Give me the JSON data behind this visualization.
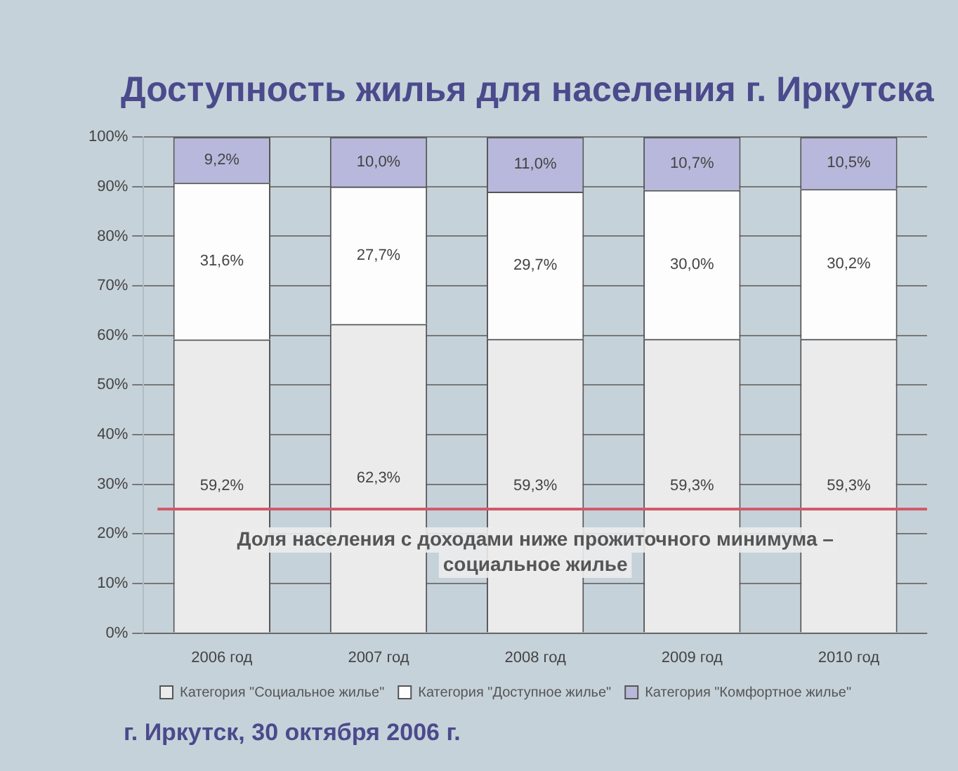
{
  "chart_data": {
    "type": "bar",
    "stacked": true,
    "title": "Доступность жилья для населения г. Иркутска",
    "categories": [
      "2006 год",
      "2007 год",
      "2008 год",
      "2009 год",
      "2010 год"
    ],
    "series": [
      {
        "name": "Категория \"Социальное жилье\"",
        "color": "#ebebeb",
        "values": [
          59.2,
          62.3,
          59.3,
          59.3,
          59.3
        ],
        "value_labels": [
          "59,2%",
          "62,3%",
          "59,3%",
          "59,3%",
          "59,3%"
        ]
      },
      {
        "name": "Категория \"Доступное жилье\"",
        "color": "#fdfdfd",
        "values": [
          31.6,
          27.7,
          29.7,
          30.0,
          30.2
        ],
        "value_labels": [
          "31,6%",
          "27,7%",
          "29,7%",
          "30,0%",
          "30,2%"
        ]
      },
      {
        "name": "Категория \"Комфортное жилье\"",
        "color": "#b8b8dc",
        "values": [
          9.2,
          10.0,
          11.0,
          10.7,
          10.5
        ],
        "value_labels": [
          "9,2%",
          "10,0%",
          "11,0%",
          "10,7%",
          "10,5%"
        ]
      }
    ],
    "ylim": [
      0,
      100
    ],
    "yticks": [
      {
        "value": 0,
        "label": "0%"
      },
      {
        "value": 10,
        "label": "10%"
      },
      {
        "value": 20,
        "label": "20%"
      },
      {
        "value": 30,
        "label": "30%"
      },
      {
        "value": 40,
        "label": "40%"
      },
      {
        "value": 50,
        "label": "50%"
      },
      {
        "value": 60,
        "label": "60%"
      },
      {
        "value": 70,
        "label": "70%"
      },
      {
        "value": 80,
        "label": "80%"
      },
      {
        "value": 90,
        "label": "90%"
      },
      {
        "value": 100,
        "label": "100%"
      }
    ],
    "grid": "y",
    "legend": "bottom",
    "ref_lines": [
      {
        "axis": "y",
        "value": 25,
        "color": "#d05a6a",
        "label": "Доля населения с доходами ниже прожиточного минимума – социальное жилье"
      }
    ],
    "annotations": [
      "г. Иркутск, 30 октября 2006 г."
    ]
  }
}
